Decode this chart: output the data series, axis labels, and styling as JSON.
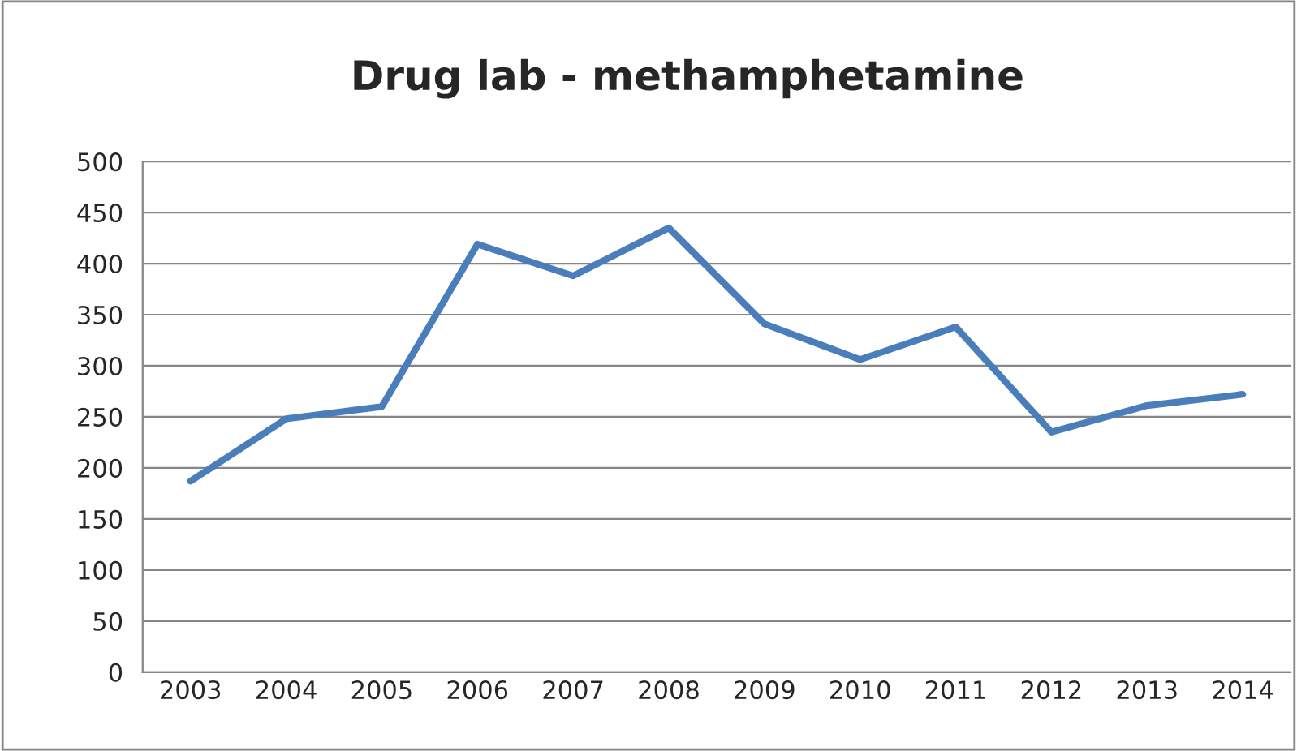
{
  "chart_data": {
    "type": "line",
    "title": "Drug lab - methamphetamine",
    "categories": [
      "2003",
      "2004",
      "2005",
      "2006",
      "2007",
      "2008",
      "2009",
      "2010",
      "2011",
      "2012",
      "2013",
      "2014"
    ],
    "series": [
      {
        "color": "#4a7ebb",
        "values": [
          187,
          248,
          260,
          419,
          388,
          435,
          341,
          306,
          338,
          235,
          261,
          272
        ]
      }
    ],
    "ylim": [
      0,
      500
    ],
    "yticks": [
      0,
      50,
      100,
      150,
      200,
      250,
      300,
      350,
      400,
      450,
      500
    ],
    "grid": "y",
    "marker": "none",
    "line_style": "solid"
  }
}
